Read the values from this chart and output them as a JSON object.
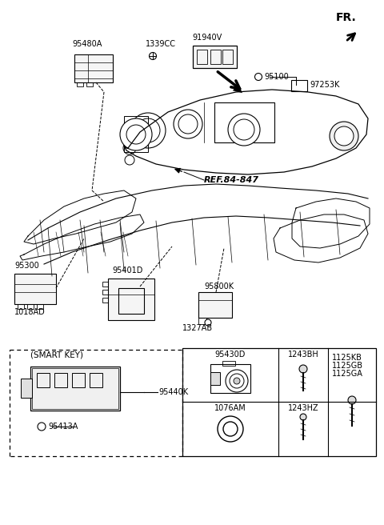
{
  "bg_color": "#ffffff",
  "lc": "#000000",
  "labels": {
    "FR": "FR.",
    "95480A": "95480A",
    "1339CC": "1339CC",
    "91940V": "91940V",
    "95100": "95100",
    "97253K": "97253K",
    "REF84847": "REF.84-847",
    "95300": "95300",
    "1018AD": "1018AD",
    "95401D": "95401D",
    "95800K": "95800K",
    "1327AB": "1327AB",
    "SMART_KEY": "(SMART KEY)",
    "95440K": "95440K",
    "95413A": "95413A",
    "95430D": "95430D",
    "1243BH": "1243BH",
    "1076AM": "1076AM",
    "1243HZ": "1243HZ",
    "1125KB": "1125KB",
    "1125GB": "1125GB",
    "1125GA": "1125GA"
  }
}
